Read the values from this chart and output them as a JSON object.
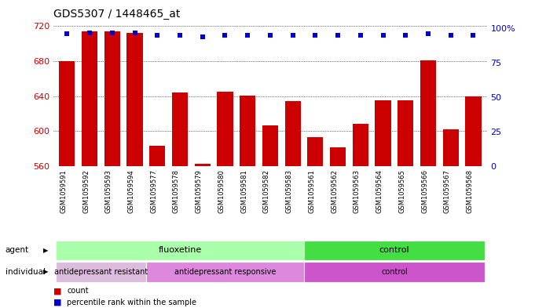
{
  "title": "GDS5307 / 1448465_at",
  "samples": [
    "GSM1059591",
    "GSM1059592",
    "GSM1059593",
    "GSM1059594",
    "GSM1059577",
    "GSM1059578",
    "GSM1059579",
    "GSM1059580",
    "GSM1059581",
    "GSM1059582",
    "GSM1059583",
    "GSM1059561",
    "GSM1059562",
    "GSM1059563",
    "GSM1059564",
    "GSM1059565",
    "GSM1059566",
    "GSM1059567",
    "GSM1059568"
  ],
  "counts": [
    680,
    714,
    714,
    712,
    583,
    644,
    563,
    645,
    641,
    607,
    634,
    593,
    582,
    608,
    635,
    635,
    681,
    602,
    640
  ],
  "percentiles": [
    96,
    97,
    97,
    97,
    95,
    95,
    94,
    95,
    95,
    95,
    95,
    95,
    95,
    95,
    95,
    95,
    96,
    95,
    95
  ],
  "ymin": 560,
  "ymax": 725,
  "yticks": [
    560,
    600,
    640,
    680,
    720
  ],
  "right_yticks": [
    0,
    25,
    50,
    75,
    100
  ],
  "bar_color": "#cc0000",
  "dot_color": "#0000cc",
  "agent_groups": [
    {
      "label": "fluoxetine",
      "start": 0,
      "end": 10,
      "color": "#aaffaa"
    },
    {
      "label": "control",
      "start": 11,
      "end": 18,
      "color": "#44dd44"
    }
  ],
  "individual_groups": [
    {
      "label": "antidepressant resistant",
      "start": 0,
      "end": 3,
      "color": "#ddbbdd"
    },
    {
      "label": "antidepressant responsive",
      "start": 4,
      "end": 10,
      "color": "#dd88dd"
    },
    {
      "label": "control",
      "start": 11,
      "end": 18,
      "color": "#cc55cc"
    }
  ],
  "legend_count_label": "count",
  "legend_pct_label": "percentile rank within the sample",
  "agent_label": "agent",
  "individual_label": "individual",
  "bg_color": "#ffffff",
  "plot_bg_color": "#ffffff"
}
